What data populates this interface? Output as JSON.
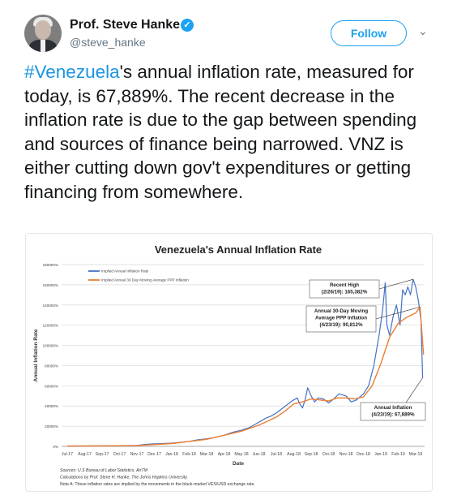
{
  "author": {
    "name": "Prof. Steve Hanke",
    "handle": "@steve_hanke",
    "verified_icon": "✓",
    "follow_label": "Follow",
    "menu_icon": "⌄"
  },
  "tweet": {
    "hashtag": "#Venezuela",
    "text_rest": "'s annual inflation rate, measured for today, is 67,889%. The recent decrease in the inflation rate is due to the gap between spending and sources of finance being narrowed. VNZ is either cutting down gov't expenditures or getting financing from somewhere."
  },
  "colors": {
    "link": "#1b95e0",
    "series1": "#4472c4",
    "series2": "#ed7d31"
  },
  "chart_data": {
    "type": "line",
    "title": "Venezuela's Annual Inflation Rate",
    "xlabel": "Date",
    "ylabel": "Annual Inflation Rate",
    "ylim": [
      0,
      180000
    ],
    "yticks": [
      "0%",
      "20000%",
      "40000%",
      "60000%",
      "80000%",
      "100000%",
      "120000%",
      "140000%",
      "160000%",
      "180000%"
    ],
    "xticks": [
      "Jul-17",
      "Aug-17",
      "Sep-17",
      "Oct-17",
      "Nov-17",
      "Dec-17",
      "Jan-18",
      "Feb-18",
      "Mar-18",
      "Apr-18",
      "May-18",
      "Jun-18",
      "Jul-18",
      "Aug-18",
      "Sep-18",
      "Oct-18",
      "Nov-18",
      "Dec-18",
      "Jan-19",
      "Feb-19",
      "Mar-19"
    ],
    "legend_position": "top-left",
    "grid": true,
    "series": [
      {
        "name": "Implied Annual Inflation Rate",
        "color": "#4472c4",
        "points": [
          [
            0,
            300
          ],
          [
            1,
            400
          ],
          [
            2,
            500
          ],
          [
            3,
            600
          ],
          [
            4,
            1000
          ],
          [
            4.5,
            2000
          ],
          [
            5,
            2500
          ],
          [
            5.5,
            2800
          ],
          [
            6,
            3200
          ],
          [
            6.5,
            4000
          ],
          [
            7,
            5000
          ],
          [
            7.5,
            6500
          ],
          [
            8,
            7500
          ],
          [
            8.5,
            9000
          ],
          [
            9,
            11000
          ],
          [
            9.5,
            14000
          ],
          [
            10,
            16000
          ],
          [
            10.5,
            19000
          ],
          [
            10.8,
            22000
          ],
          [
            11,
            24000
          ],
          [
            11.4,
            28000
          ],
          [
            11.7,
            30000
          ],
          [
            12,
            33000
          ],
          [
            12.3,
            37000
          ],
          [
            12.6,
            41000
          ],
          [
            12.9,
            45000
          ],
          [
            13.2,
            48000
          ],
          [
            13.35,
            42000
          ],
          [
            13.5,
            38000
          ],
          [
            13.65,
            46000
          ],
          [
            13.8,
            58000
          ],
          [
            14,
            50000
          ],
          [
            14.2,
            44000
          ],
          [
            14.4,
            48000
          ],
          [
            14.7,
            47000
          ],
          [
            15,
            43000
          ],
          [
            15.3,
            47000
          ],
          [
            15.6,
            52000
          ],
          [
            16,
            50000
          ],
          [
            16.3,
            44000
          ],
          [
            16.6,
            46000
          ],
          [
            17,
            52000
          ],
          [
            17.3,
            60000
          ],
          [
            17.6,
            80000
          ],
          [
            17.9,
            110000
          ],
          [
            18.1,
            135000
          ],
          [
            18.25,
            162000
          ],
          [
            18.35,
            120000
          ],
          [
            18.5,
            110000
          ],
          [
            18.7,
            128000
          ],
          [
            18.9,
            140000
          ],
          [
            19.1,
            120000
          ],
          [
            19.25,
            155000
          ],
          [
            19.4,
            150000
          ],
          [
            19.55,
            158000
          ],
          [
            19.7,
            150000
          ],
          [
            19.85,
            165382
          ],
          [
            20,
            158000
          ],
          [
            20.15,
            145000
          ],
          [
            20.3,
            125000
          ],
          [
            20.4,
            67889
          ]
        ]
      },
      {
        "name": "Implied Annual 30 Day Moving Average PPP Inflation",
        "color": "#ed7d31",
        "points": [
          [
            0,
            300
          ],
          [
            2,
            500
          ],
          [
            4,
            900
          ],
          [
            6,
            2800
          ],
          [
            8,
            7000
          ],
          [
            10,
            15000
          ],
          [
            11,
            21000
          ],
          [
            12,
            29000
          ],
          [
            12.5,
            35000
          ],
          [
            13,
            42000
          ],
          [
            13.5,
            44000
          ],
          [
            14,
            47000
          ],
          [
            14.5,
            46000
          ],
          [
            15,
            45000
          ],
          [
            15.5,
            48000
          ],
          [
            16,
            48000
          ],
          [
            16.5,
            47000
          ],
          [
            17,
            49000
          ],
          [
            17.5,
            60000
          ],
          [
            18,
            82000
          ],
          [
            18.5,
            108000
          ],
          [
            19,
            122000
          ],
          [
            19.5,
            128000
          ],
          [
            20,
            132000
          ],
          [
            20.25,
            138000
          ],
          [
            20.45,
            90812
          ]
        ]
      }
    ],
    "annotations": [
      {
        "lines": [
          "Recent High",
          "(2/26/19): 165,382%"
        ]
      },
      {
        "lines": [
          "Annual 30-Day Moving",
          "Average PPP Inflation",
          "(4/23/19): 90,812%"
        ]
      },
      {
        "lines": [
          "Annual Inflation",
          "(4/23/19): 67,889%"
        ]
      }
    ],
    "notes": [
      "Sources: U.S Bureau of Labor Statistics, AirTM",
      "Calculations by Prof. Steve H. Hanke, The Johns Hopkins University.",
      "Note A: These inflation rates are implied by the movements in the black-market VES/USD exchange rate."
    ]
  }
}
